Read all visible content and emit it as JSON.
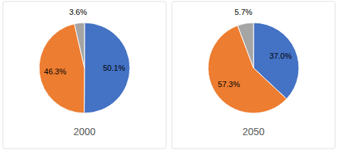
{
  "chart_data": [
    {
      "type": "pie",
      "title": "2000",
      "values": [
        50.1,
        46.3,
        3.6
      ],
      "value_labels": [
        "50.1%",
        "46.3%",
        "3.6%"
      ],
      "colors": [
        "#4472C4",
        "#ED7D31",
        "#A5A5A5"
      ],
      "data_labels": true
    },
    {
      "type": "pie",
      "title": "2050",
      "values": [
        37.0,
        57.3,
        5.7
      ],
      "value_labels": [
        "37.0%",
        "57.3%",
        "5.7%"
      ],
      "colors": [
        "#4472C4",
        "#ED7D31",
        "#A5A5A5"
      ],
      "data_labels": true
    }
  ]
}
